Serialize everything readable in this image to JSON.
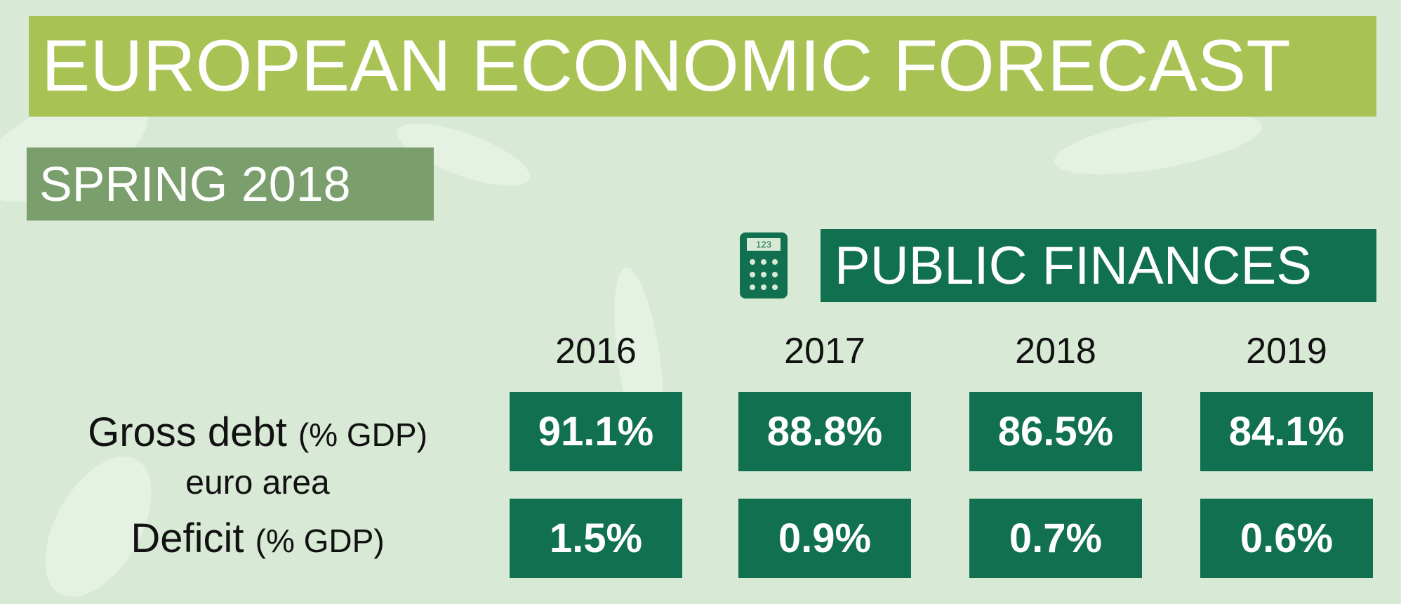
{
  "header": {
    "title": "EUROPEAN ECONOMIC FORECAST",
    "subtitle": "SPRING 2018"
  },
  "section": {
    "title": "PUBLIC FINANCES",
    "icon_label": "123"
  },
  "table": {
    "columns": [
      "2016",
      "2017",
      "2018",
      "2019"
    ],
    "region": "euro area",
    "rows": [
      {
        "label": "Gross debt",
        "unit": "(% GDP)",
        "cells": [
          "91.1%",
          "88.8%",
          "86.5%",
          "84.1%"
        ]
      },
      {
        "label": "Deficit",
        "unit": "(% GDP)",
        "cells": [
          "1.5%",
          "0.9%",
          "0.7%",
          "0.6%"
        ]
      }
    ]
  }
}
